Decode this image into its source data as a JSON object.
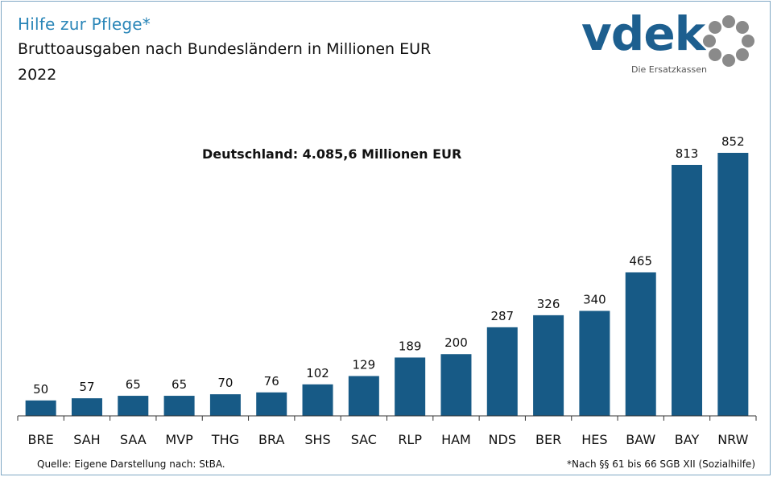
{
  "header": {
    "title": "Hilfe zur Pflege*",
    "subtitle": "Bruttoausgaben nach Bundesländern in Millionen EUR",
    "year": "2022"
  },
  "logo": {
    "wordmark": "vdek",
    "tagline": "Die Ersatzkassen",
    "brand_color": "#1d5f8f",
    "ring_color": "#8a8a8a"
  },
  "annotation": "Deutschland: 4.085,6 Millionen EUR",
  "footer": {
    "source": "Quelle: Eigene Darstellung nach: StBA.",
    "footnote": "*Nach §§ 61 bis 66 SGB XII (Sozialhilfe)"
  },
  "chart_data": {
    "type": "bar",
    "title": "Hilfe zur Pflege*",
    "subtitle": "Bruttoausgaben nach Bundesländern in Millionen EUR",
    "categories": [
      "BRE",
      "SAH",
      "SAA",
      "MVP",
      "THG",
      "BRA",
      "SHS",
      "SAC",
      "RLP",
      "HAM",
      "NDS",
      "BER",
      "HES",
      "BAW",
      "BAY",
      "NRW"
    ],
    "values": [
      50,
      57,
      65,
      65,
      70,
      76,
      102,
      129,
      189,
      200,
      287,
      326,
      340,
      465,
      813,
      852
    ],
    "ylim": [
      0,
      852
    ],
    "grid": false,
    "legend": "none",
    "bar_color": "#175a86"
  }
}
